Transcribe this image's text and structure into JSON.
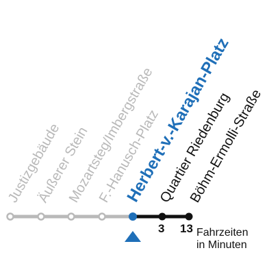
{
  "colors": {
    "past": "#b9b9b9",
    "current": "#1f6fb8",
    "future": "#111111",
    "line_future": "#111111"
  },
  "stops": [
    {
      "name": "Justizgebäude",
      "state": "past"
    },
    {
      "name": "Äußerer Stein",
      "state": "past"
    },
    {
      "name": "Mozartsteg/Imbergstraße",
      "state": "past"
    },
    {
      "name": "F.-Hanusch-Platz",
      "state": "past"
    },
    {
      "name": "Herbert-v.-Karajan-Platz",
      "state": "current"
    },
    {
      "name": "Quartier Riedenburg",
      "state": "future",
      "minutes": "3"
    },
    {
      "name": "Böhm-Ermolli-Straße",
      "state": "future",
      "minutes": "13"
    }
  ],
  "caption": {
    "line1": "Fahrzeiten",
    "line2": "in Minuten"
  },
  "icons": {
    "position_marker": "current-position-triangle-icon"
  }
}
